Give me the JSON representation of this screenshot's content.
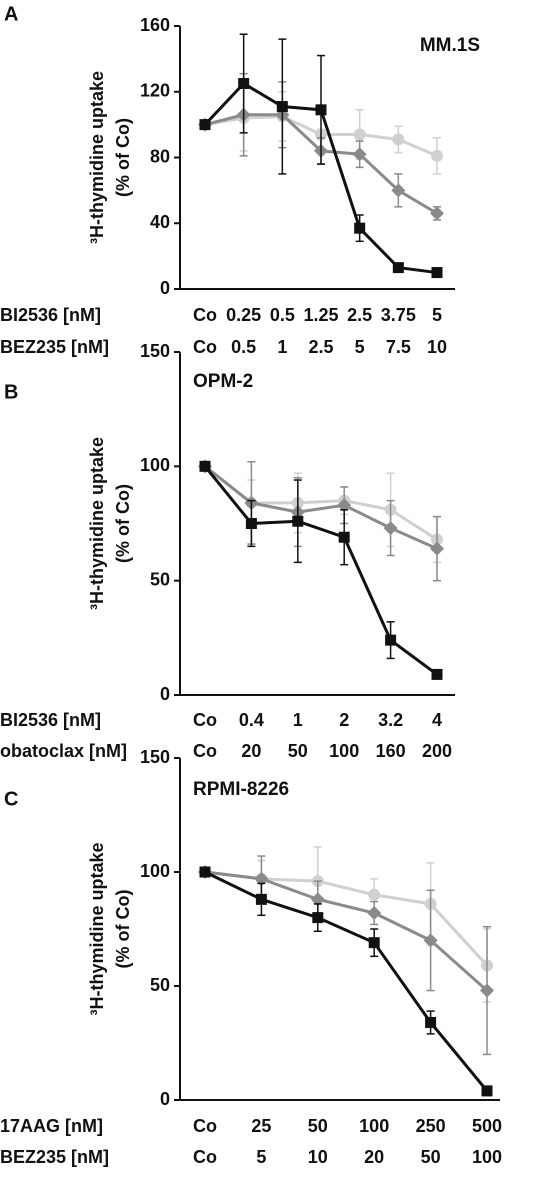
{
  "chart_data": [
    {
      "type": "line",
      "panel": "A",
      "annotation": "MM.1S",
      "y_label": [
        "³H-thymidine uptake",
        "(% of Co)"
      ],
      "category_rows": [
        {
          "label": "BI2536 [nM]",
          "categories": [
            "Co",
            "0.25",
            "0.5",
            "1.25",
            "2.5",
            "3.75",
            "5"
          ]
        },
        {
          "label": "BEZ235 [nM]",
          "categories": [
            "Co",
            "0.5",
            "1",
            "2.5",
            "5",
            "7.5",
            "10"
          ]
        }
      ],
      "ylim": [
        0,
        160
      ],
      "yticks": [
        0,
        40,
        80,
        120,
        160
      ],
      "series": [
        {
          "color": "#d0d0d0",
          "marker": "circle",
          "values": [
            100,
            104,
            105,
            94,
            94,
            91,
            81
          ],
          "errors": [
            0,
            20,
            15,
            3,
            15,
            8,
            11
          ]
        },
        {
          "color": "#8a8a8a",
          "marker": "diamond",
          "values": [
            100,
            106,
            106,
            84,
            82,
            60,
            46
          ],
          "errors": [
            0,
            25,
            20,
            8,
            8,
            10,
            4
          ]
        },
        {
          "color": "#111111",
          "marker": "square",
          "values": [
            100,
            125,
            111,
            109,
            37,
            13,
            10
          ],
          "errors": [
            0,
            30,
            41,
            33,
            8,
            2,
            1
          ]
        }
      ]
    },
    {
      "type": "line",
      "panel": "B",
      "annotation": "OPM-2",
      "y_label": [
        "³H-thymidine uptake",
        "(% of Co)"
      ],
      "category_rows": [
        {
          "label": "BI2536 [nM]",
          "categories": [
            "Co",
            "0.4",
            "1",
            "2",
            "3.2",
            "4"
          ]
        },
        {
          "label": "obatoclax [nM]",
          "categories": [
            "Co",
            "20",
            "50",
            "100",
            "160",
            "200"
          ]
        }
      ],
      "ylim": [
        0,
        150
      ],
      "yticks": [
        0,
        50,
        100,
        150
      ],
      "series": [
        {
          "color": "#d0d0d0",
          "marker": "circle",
          "values": [
            100,
            84,
            84,
            85,
            81,
            68
          ],
          "errors": [
            0,
            10,
            13,
            6,
            16,
            10
          ]
        },
        {
          "color": "#8a8a8a",
          "marker": "diamond",
          "values": [
            100,
            84,
            80,
            83,
            73,
            64
          ],
          "errors": [
            0,
            18,
            15,
            8,
            12,
            14
          ]
        },
        {
          "color": "#111111",
          "marker": "square",
          "values": [
            100,
            75,
            76,
            69,
            24,
            9
          ],
          "errors": [
            0,
            10,
            18,
            12,
            8,
            1
          ]
        }
      ]
    },
    {
      "type": "line",
      "panel": "C",
      "annotation": "RPMI-8226",
      "y_label": [
        "³H-thymidine uptake",
        "(% of Co)"
      ],
      "category_rows": [
        {
          "label": "17AAG [nM]",
          "categories": [
            "Co",
            "25",
            "50",
            "100",
            "250",
            "500"
          ]
        },
        {
          "label": "BEZ235 [nM]",
          "categories": [
            "Co",
            "5",
            "10",
            "20",
            "50",
            "100"
          ]
        }
      ],
      "ylim": [
        0,
        150
      ],
      "yticks": [
        0,
        50,
        100,
        150
      ],
      "series": [
        {
          "color": "#d0d0d0",
          "marker": "circle",
          "values": [
            100,
            97,
            96,
            90,
            86,
            59
          ],
          "errors": [
            0,
            8,
            15,
            7,
            18,
            16
          ]
        },
        {
          "color": "#8a8a8a",
          "marker": "diamond",
          "values": [
            100,
            97,
            88,
            82,
            70,
            48
          ],
          "errors": [
            0,
            10,
            8,
            5,
            22,
            28
          ]
        },
        {
          "color": "#111111",
          "marker": "square",
          "values": [
            100,
            88,
            80,
            69,
            34,
            4
          ],
          "errors": [
            0,
            7,
            6,
            6,
            5,
            2
          ]
        }
      ]
    }
  ]
}
